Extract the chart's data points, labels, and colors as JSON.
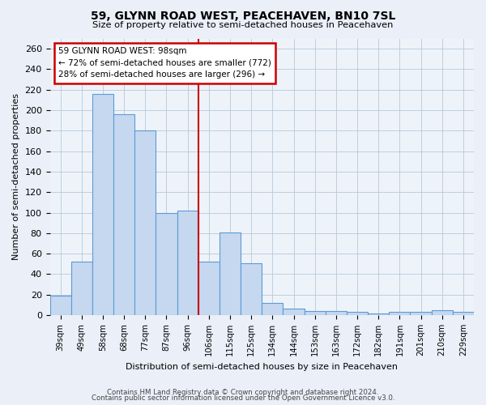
{
  "title": "59, GLYNN ROAD WEST, PEACEHAVEN, BN10 7SL",
  "subtitle": "Size of property relative to semi-detached houses in Peacehaven",
  "xlabel": "Distribution of semi-detached houses by size in Peacehaven",
  "ylabel": "Number of semi-detached properties",
  "bar_labels": [
    "39sqm",
    "49sqm",
    "58sqm",
    "68sqm",
    "77sqm",
    "87sqm",
    "96sqm",
    "106sqm",
    "115sqm",
    "125sqm",
    "134sqm",
    "144sqm",
    "153sqm",
    "163sqm",
    "172sqm",
    "182sqm",
    "191sqm",
    "201sqm",
    "210sqm",
    "229sqm"
  ],
  "bar_values": [
    19,
    52,
    216,
    196,
    180,
    100,
    102,
    52,
    81,
    51,
    12,
    6,
    4,
    4,
    3,
    2,
    3,
    3,
    5,
    3
  ],
  "bar_color": "#c5d8f0",
  "bar_edgecolor": "#5b9bd5",
  "vline_x": 6.5,
  "vline_color": "#cc0000",
  "annotation_title": "59 GLYNN ROAD WEST: 98sqm",
  "annotation_line1": "← 72% of semi-detached houses are smaller (772)",
  "annotation_line2": "28% of semi-detached houses are larger (296) →",
  "annotation_box_edgecolor": "#cc0000",
  "ylim": [
    0,
    270
  ],
  "yticks": [
    0,
    20,
    40,
    60,
    80,
    100,
    120,
    140,
    160,
    180,
    200,
    220,
    240,
    260
  ],
  "footer1": "Contains HM Land Registry data © Crown copyright and database right 2024.",
  "footer2": "Contains public sector information licensed under the Open Government Licence v3.0.",
  "bg_color": "#eaeff8",
  "plot_bg_color": "#eef3fa"
}
